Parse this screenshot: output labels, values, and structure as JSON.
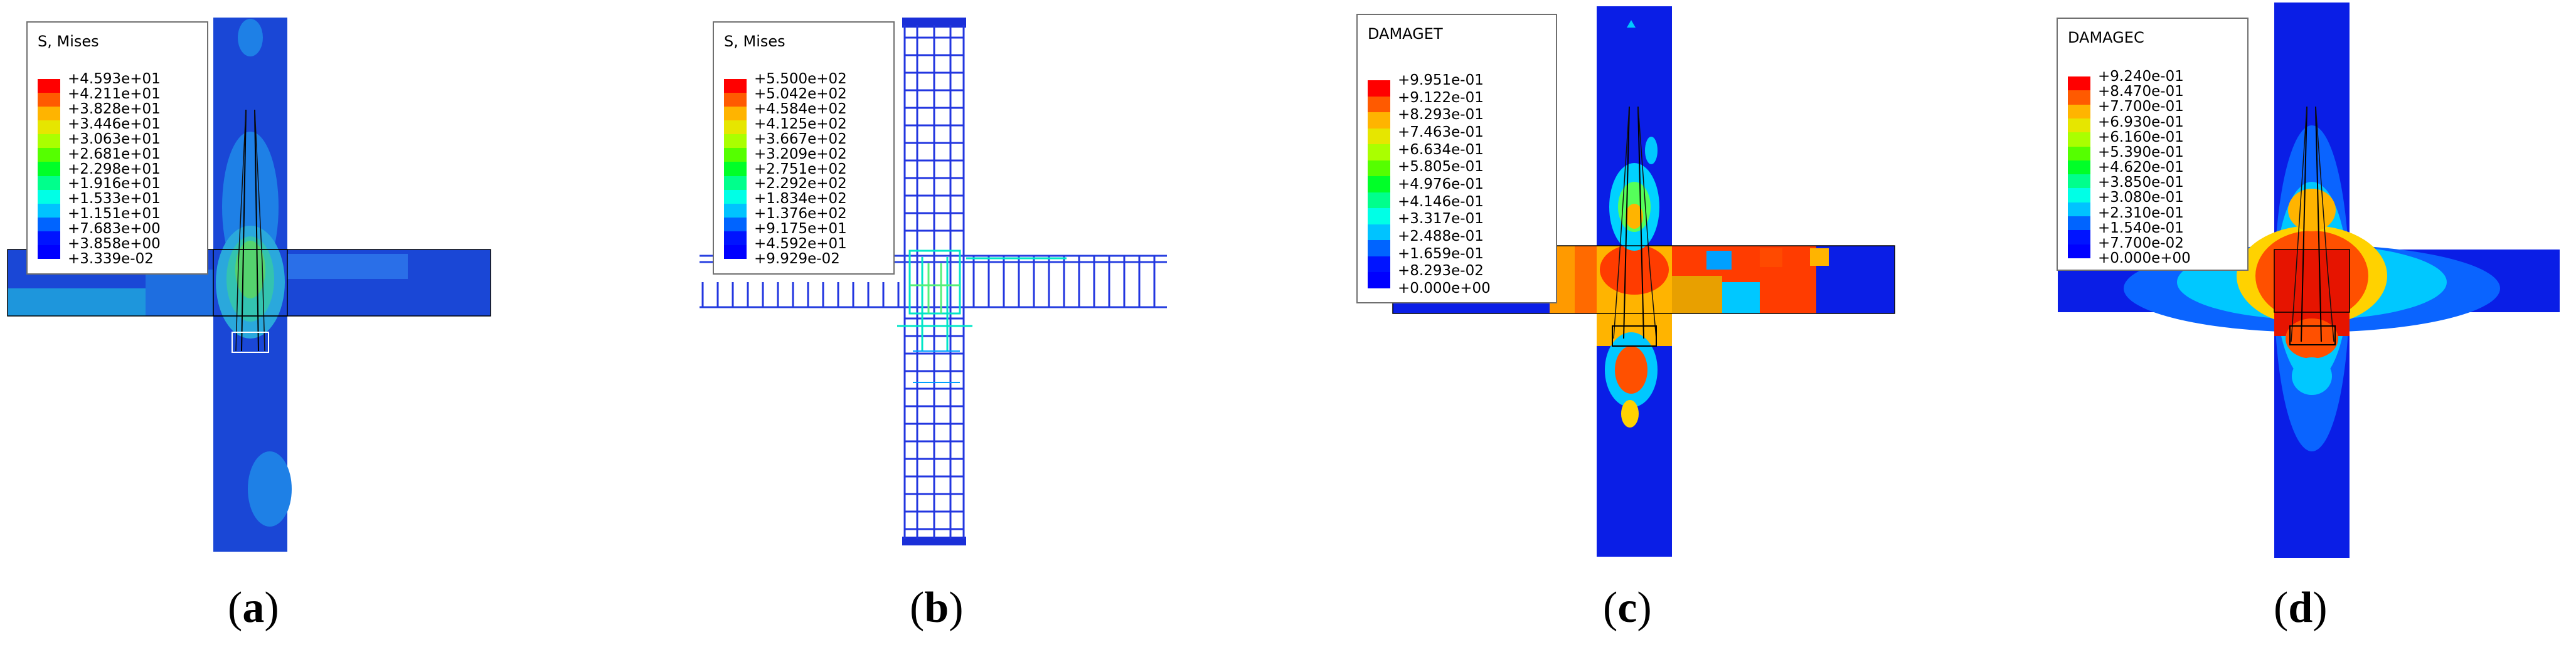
{
  "panels": [
    {
      "id": "a",
      "caption": {
        "open": "(",
        "letter": "a",
        "close": ")"
      },
      "legend": {
        "title": "S, Mises",
        "values": [
          "+4.593e+01",
          "+4.211e+01",
          "+3.828e+01",
          "+3.446e+01",
          "+3.063e+01",
          "+2.681e+01",
          "+2.298e+01",
          "+1.916e+01",
          "+1.533e+01",
          "+1.151e+01",
          "+7.683e+00",
          "+3.858e+00",
          "+3.339e-02"
        ]
      }
    },
    {
      "id": "b",
      "caption": {
        "open": "(",
        "letter": "b",
        "close": ")"
      },
      "legend": {
        "title": "S, Mises",
        "values": [
          "+5.500e+02",
          "+5.042e+02",
          "+4.584e+02",
          "+4.125e+02",
          "+3.667e+02",
          "+3.209e+02",
          "+2.751e+02",
          "+2.292e+02",
          "+1.834e+02",
          "+1.376e+02",
          "+9.175e+01",
          "+4.592e+01",
          "+9.929e-02"
        ]
      }
    },
    {
      "id": "c",
      "caption": {
        "open": "(",
        "letter": "c",
        "close": ")"
      },
      "legend": {
        "title": "DAMAGET",
        "values": [
          "+9.951e-01",
          "+9.122e-01",
          "+8.293e-01",
          "+7.463e-01",
          "+6.634e-01",
          "+5.805e-01",
          "+4.976e-01",
          "+4.146e-01",
          "+3.317e-01",
          "+2.488e-01",
          "+1.659e-01",
          "+8.293e-02",
          "+0.000e+00"
        ]
      }
    },
    {
      "id": "d",
      "caption": {
        "open": "(",
        "letter": "d",
        "close": ")"
      },
      "legend": {
        "title": "DAMAGEC",
        "values": [
          "+9.240e-01",
          "+8.470e-01",
          "+7.700e-01",
          "+6.930e-01",
          "+6.160e-01",
          "+5.390e-01",
          "+4.620e-01",
          "+3.850e-01",
          "+3.080e-01",
          "+2.310e-01",
          "+1.540e-01",
          "+7.700e-02",
          "+0.000e+00"
        ]
      }
    }
  ],
  "colors": {
    "contour_scale": [
      "#ff0000",
      "#ff5a00",
      "#ffb400",
      "#e6e600",
      "#aaff00",
      "#55ff00",
      "#00ff28",
      "#00ff8c",
      "#00ffe6",
      "#00c3ff",
      "#0064ff",
      "#0014ff",
      "#0000ff"
    ],
    "element_dark_blue": "#1a47d6",
    "frame_grey": "#6f6f6f"
  }
}
